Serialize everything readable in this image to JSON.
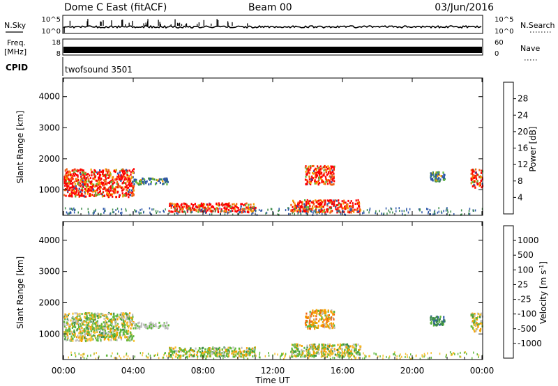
{
  "header": {
    "radar": "Dome C East (fitACF)",
    "beam": "Beam 00",
    "date": "03/Jun/2016"
  },
  "strip": {
    "nsky_label": "N.Sky",
    "nsearch_label": "N.Search",
    "nsky_ticks": [
      "10^5",
      "10^0"
    ],
    "nsearch_ticks": [
      "10^5",
      "10^0"
    ],
    "freq_label": "Freq.",
    "freq_unit": "[MHz]",
    "freq_ticks": [
      "18",
      "8"
    ],
    "nave_label": "Nave",
    "nave_ticks": [
      "60",
      "0"
    ],
    "cpid_label": "CPID",
    "cpid_value": "twofsound 3501"
  },
  "colors": {
    "power": [
      "#1414e6",
      "#2a55a8",
      "#3c8c4a",
      "#5fb83a",
      "#f0e020",
      "#f5a000",
      "#f06414",
      "#ff0000"
    ],
    "velocity": [
      "#ff0000",
      "#f06414",
      "#f5a000",
      "#f5c030",
      "#bebebe",
      "#5fb83a",
      "#3c8c4a",
      "#2a55a8",
      "#1e3cc8"
    ]
  },
  "chart_data": [
    {
      "type": "heatmap",
      "panel": "power",
      "ylabel": "Slant Range [km]",
      "yticks": [
        "1000",
        "2000",
        "3000",
        "4000"
      ],
      "ylim": [
        180,
        4600
      ],
      "x_range": [
        "00:00",
        "00:00"
      ],
      "colorbar_label": "Power [dB]",
      "colorbar_ticks": [
        "4",
        "8",
        "12",
        "16",
        "20",
        "24",
        "28"
      ],
      "scatter_regions": [
        {
          "t": [
            "00:00",
            "04:00"
          ],
          "range_km": [
            800,
            1700
          ],
          "level": "20-28 dB"
        },
        {
          "t": [
            "04:00",
            "06:00"
          ],
          "range_km": [
            1200,
            1400
          ],
          "level": "4-12 dB"
        },
        {
          "t": [
            "06:00",
            "11:00"
          ],
          "range_km": [
            300,
            600
          ],
          "level": "16-28 dB"
        },
        {
          "t": [
            "13:00",
            "17:00"
          ],
          "range_km": [
            300,
            700
          ],
          "level": "20-28 dB"
        },
        {
          "t": [
            "13:50",
            "15:30"
          ],
          "range_km": [
            1200,
            1800
          ],
          "level": "16-28 dB"
        },
        {
          "t": [
            "21:00",
            "21:50"
          ],
          "range_km": [
            1300,
            1600
          ],
          "level": "12-24 dB"
        },
        {
          "t": [
            "23:20",
            "24:00"
          ],
          "range_km": [
            1100,
            1700
          ],
          "level": "20-28 dB"
        }
      ]
    },
    {
      "type": "heatmap",
      "panel": "velocity",
      "ylabel": "Slant Range [km]",
      "yticks": [
        "1000",
        "2000",
        "3000",
        "4000"
      ],
      "ylim": [
        180,
        4600
      ],
      "xticks": [
        "00:00",
        "04:00",
        "08:00",
        "12:00",
        "16:00",
        "20:00",
        "00:00"
      ],
      "xlabel": "Time UT",
      "colorbar_label": "Velocity [m s^-1]",
      "colorbar_ticks": [
        "1000",
        "500",
        "100",
        "25",
        "-25",
        "-100",
        "-500",
        "-1000"
      ],
      "scatter_regions": [
        {
          "t": [
            "00:00",
            "04:00"
          ],
          "range_km": [
            800,
            1700
          ],
          "level": "-100 to 100 m/s"
        },
        {
          "t": [
            "04:00",
            "06:00"
          ],
          "range_km": [
            1200,
            1400
          ],
          "level": "-25 to 25 m/s"
        },
        {
          "t": [
            "06:00",
            "11:00"
          ],
          "range_km": [
            300,
            600
          ],
          "level": "-100 to 100 m/s"
        },
        {
          "t": [
            "13:00",
            "17:00"
          ],
          "range_km": [
            300,
            700
          ],
          "level": "-100 to 100 m/s"
        },
        {
          "t": [
            "13:50",
            "15:30"
          ],
          "range_km": [
            1200,
            1800
          ],
          "level": "-500 to -25 m/s"
        },
        {
          "t": [
            "21:00",
            "21:50"
          ],
          "range_km": [
            1300,
            1600
          ],
          "level": "100 to 1000 m/s"
        },
        {
          "t": [
            "23:20",
            "24:00"
          ],
          "range_km": [
            1100,
            1700
          ],
          "level": "25 to 500 m/s"
        }
      ]
    }
  ]
}
